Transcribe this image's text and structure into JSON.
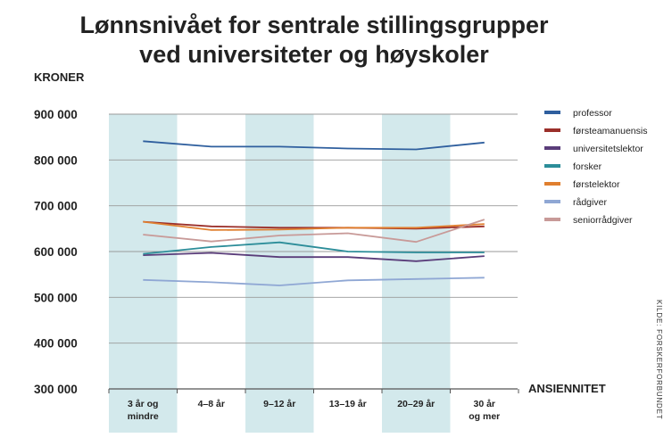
{
  "chart_data": {
    "type": "line",
    "title_lines": [
      "Lønnsnivået for sentrale stillingsgrupper",
      "ved universiteter og høyskoler"
    ],
    "ylabel": "KRONER",
    "xlabel": "ANSIENNITET",
    "source": "KILDE: FORSKERFORBUNDET",
    "categories": [
      [
        "3 år og",
        "mindre"
      ],
      [
        "4–8 år"
      ],
      [
        "9–12 år"
      ],
      [
        "13–19 år"
      ],
      [
        "20–29 år"
      ],
      [
        "30 år",
        "og mer"
      ]
    ],
    "ylim": [
      300000,
      900000
    ],
    "yticks": [
      900000,
      800000,
      700000,
      600000,
      500000,
      400000,
      300000
    ],
    "ytick_labels": [
      "900 000",
      "800 000",
      "700 000",
      "600 000",
      "500 000",
      "400 000",
      "300 000"
    ],
    "grid": true,
    "shaded_columns": [
      0,
      2,
      4
    ],
    "legend_position": "right",
    "series": [
      {
        "name": "professor",
        "color": "#2f5f9e",
        "values": [
          841000,
          829000,
          829000,
          825000,
          823000,
          838000
        ]
      },
      {
        "name": "førsteamanuensis",
        "color": "#9b2f2a",
        "values": [
          665000,
          655000,
          652000,
          652000,
          650000,
          655000
        ]
      },
      {
        "name": "universitetslektor",
        "color": "#5a3d7a",
        "values": [
          592000,
          597000,
          588000,
          588000,
          579000,
          590000
        ]
      },
      {
        "name": "forsker",
        "color": "#2c8d99",
        "values": [
          595000,
          610000,
          620000,
          600000,
          598000,
          598000
        ]
      },
      {
        "name": "førstelektor",
        "color": "#e07f2f",
        "values": [
          665000,
          647000,
          648000,
          652000,
          652000,
          660000
        ]
      },
      {
        "name": "rådgiver",
        "color": "#8fa7d4",
        "values": [
          538000,
          533000,
          526000,
          537000,
          540000,
          543000
        ]
      },
      {
        "name": "seniorrådgiver",
        "color": "#c89a98",
        "values": [
          637000,
          622000,
          635000,
          640000,
          621000,
          670000
        ]
      }
    ]
  }
}
